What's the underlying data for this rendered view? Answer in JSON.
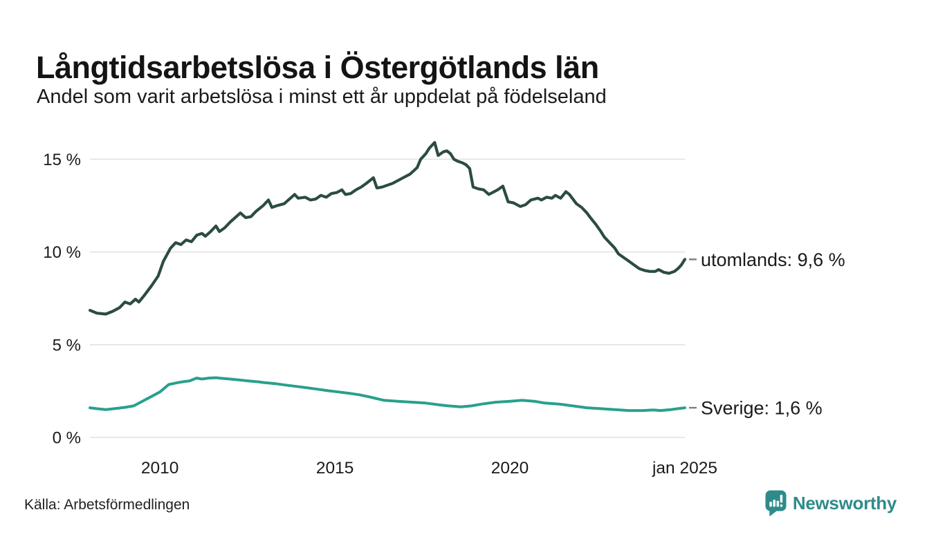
{
  "header": {
    "title": "Långtidsarbetslösa i Östergötlands län",
    "subtitle": "Andel som varit arbetslösa i minst ett år uppdelat på födelseland"
  },
  "chart_data": {
    "type": "line",
    "title": "Långtidsarbetslösa i Östergötlands län",
    "subtitle": "Andel som varit arbetslösa i minst ett år uppdelat på födelseland",
    "xlabel": "",
    "ylabel": "",
    "x_range": [
      2008,
      2025
    ],
    "ylim": [
      0,
      16
    ],
    "grid": "horizontal",
    "gridline_color": "#e1e1e1",
    "axis_text_color": "#1a1a1a",
    "yticks": [
      {
        "label": "0 %",
        "value": 0
      },
      {
        "label": "5 %",
        "value": 5
      },
      {
        "label": "10 %",
        "value": 10
      },
      {
        "label": "15 %",
        "value": 15
      }
    ],
    "xticks": [
      {
        "label": "2010",
        "value": 2010
      },
      {
        "label": "2015",
        "value": 2015
      },
      {
        "label": "2020",
        "value": 2020
      },
      {
        "label": "jan 2025",
        "value": 2025
      }
    ],
    "legend_position": "end-of-line-labels",
    "series": [
      {
        "name": "utomlands",
        "color": "#2c4c41",
        "stroke_width": 4.2,
        "end_label": "utomlands: 9,6 %",
        "end_value": 9.6,
        "points": [
          [
            2008.0,
            6.85
          ],
          [
            2008.2,
            6.7
          ],
          [
            2008.45,
            6.65
          ],
          [
            2008.65,
            6.8
          ],
          [
            2008.85,
            7.0
          ],
          [
            2009.0,
            7.3
          ],
          [
            2009.15,
            7.2
          ],
          [
            2009.3,
            7.45
          ],
          [
            2009.4,
            7.3
          ],
          [
            2009.55,
            7.65
          ],
          [
            2009.75,
            8.15
          ],
          [
            2009.95,
            8.7
          ],
          [
            2010.1,
            9.5
          ],
          [
            2010.3,
            10.2
          ],
          [
            2010.45,
            10.5
          ],
          [
            2010.6,
            10.4
          ],
          [
            2010.75,
            10.65
          ],
          [
            2010.9,
            10.55
          ],
          [
            2011.05,
            10.9
          ],
          [
            2011.2,
            11.0
          ],
          [
            2011.3,
            10.85
          ],
          [
            2011.45,
            11.1
          ],
          [
            2011.6,
            11.4
          ],
          [
            2011.7,
            11.1
          ],
          [
            2011.85,
            11.3
          ],
          [
            2012.0,
            11.6
          ],
          [
            2012.15,
            11.85
          ],
          [
            2012.3,
            12.1
          ],
          [
            2012.45,
            11.85
          ],
          [
            2012.6,
            11.9
          ],
          [
            2012.75,
            12.2
          ],
          [
            2012.95,
            12.5
          ],
          [
            2013.1,
            12.8
          ],
          [
            2013.2,
            12.4
          ],
          [
            2013.35,
            12.5
          ],
          [
            2013.55,
            12.6
          ],
          [
            2013.7,
            12.85
          ],
          [
            2013.85,
            13.1
          ],
          [
            2013.95,
            12.9
          ],
          [
            2014.15,
            12.95
          ],
          [
            2014.3,
            12.8
          ],
          [
            2014.45,
            12.85
          ],
          [
            2014.6,
            13.05
          ],
          [
            2014.75,
            12.95
          ],
          [
            2014.9,
            13.15
          ],
          [
            2015.05,
            13.2
          ],
          [
            2015.2,
            13.35
          ],
          [
            2015.3,
            13.1
          ],
          [
            2015.45,
            13.15
          ],
          [
            2015.6,
            13.35
          ],
          [
            2015.75,
            13.5
          ],
          [
            2015.9,
            13.7
          ],
          [
            2016.1,
            14.0
          ],
          [
            2016.2,
            13.45
          ],
          [
            2016.35,
            13.5
          ],
          [
            2016.65,
            13.7
          ],
          [
            2016.95,
            14.0
          ],
          [
            2017.15,
            14.2
          ],
          [
            2017.35,
            14.55
          ],
          [
            2017.45,
            15.0
          ],
          [
            2017.6,
            15.3
          ],
          [
            2017.7,
            15.6
          ],
          [
            2017.85,
            15.9
          ],
          [
            2017.95,
            15.2
          ],
          [
            2018.1,
            15.4
          ],
          [
            2018.2,
            15.45
          ],
          [
            2018.3,
            15.3
          ],
          [
            2018.4,
            15.0
          ],
          [
            2018.5,
            14.9
          ],
          [
            2018.65,
            14.8
          ],
          [
            2018.75,
            14.7
          ],
          [
            2018.85,
            14.5
          ],
          [
            2018.95,
            13.5
          ],
          [
            2019.1,
            13.4
          ],
          [
            2019.25,
            13.35
          ],
          [
            2019.4,
            13.1
          ],
          [
            2019.5,
            13.2
          ],
          [
            2019.65,
            13.35
          ],
          [
            2019.8,
            13.55
          ],
          [
            2019.95,
            12.7
          ],
          [
            2020.1,
            12.65
          ],
          [
            2020.3,
            12.45
          ],
          [
            2020.45,
            12.55
          ],
          [
            2020.6,
            12.8
          ],
          [
            2020.8,
            12.9
          ],
          [
            2020.9,
            12.8
          ],
          [
            2021.05,
            12.95
          ],
          [
            2021.2,
            12.9
          ],
          [
            2021.3,
            13.05
          ],
          [
            2021.45,
            12.9
          ],
          [
            2021.6,
            13.25
          ],
          [
            2021.7,
            13.1
          ],
          [
            2021.9,
            12.6
          ],
          [
            2022.05,
            12.4
          ],
          [
            2022.2,
            12.1
          ],
          [
            2022.3,
            11.85
          ],
          [
            2022.45,
            11.5
          ],
          [
            2022.6,
            11.1
          ],
          [
            2022.7,
            10.8
          ],
          [
            2022.85,
            10.5
          ],
          [
            2023.0,
            10.2
          ],
          [
            2023.1,
            9.9
          ],
          [
            2023.25,
            9.7
          ],
          [
            2023.4,
            9.5
          ],
          [
            2023.55,
            9.3
          ],
          [
            2023.7,
            9.1
          ],
          [
            2023.85,
            9.0
          ],
          [
            2024.0,
            8.95
          ],
          [
            2024.15,
            8.95
          ],
          [
            2024.25,
            9.05
          ],
          [
            2024.4,
            8.9
          ],
          [
            2024.55,
            8.85
          ],
          [
            2024.7,
            8.95
          ],
          [
            2024.8,
            9.1
          ],
          [
            2024.9,
            9.3
          ],
          [
            2025.0,
            9.6
          ]
        ]
      },
      {
        "name": "Sverige",
        "color": "#28a08c",
        "stroke_width": 4,
        "end_label": "Sverige: 1,6 %",
        "end_value": 1.6,
        "points": [
          [
            2008.0,
            1.6
          ],
          [
            2008.2,
            1.55
          ],
          [
            2008.45,
            1.5
          ],
          [
            2008.7,
            1.55
          ],
          [
            2009.0,
            1.62
          ],
          [
            2009.25,
            1.7
          ],
          [
            2009.45,
            1.9
          ],
          [
            2009.7,
            2.15
          ],
          [
            2010.0,
            2.45
          ],
          [
            2010.25,
            2.85
          ],
          [
            2010.5,
            2.95
          ],
          [
            2010.65,
            3.0
          ],
          [
            2010.85,
            3.05
          ],
          [
            2011.05,
            3.2
          ],
          [
            2011.2,
            3.15
          ],
          [
            2011.4,
            3.2
          ],
          [
            2011.6,
            3.22
          ],
          [
            2011.8,
            3.18
          ],
          [
            2012.0,
            3.15
          ],
          [
            2012.25,
            3.1
          ],
          [
            2012.5,
            3.05
          ],
          [
            2012.8,
            3.0
          ],
          [
            2013.0,
            2.95
          ],
          [
            2013.3,
            2.9
          ],
          [
            2013.6,
            2.82
          ],
          [
            2013.9,
            2.75
          ],
          [
            2014.2,
            2.68
          ],
          [
            2014.5,
            2.6
          ],
          [
            2014.8,
            2.52
          ],
          [
            2015.1,
            2.45
          ],
          [
            2015.4,
            2.38
          ],
          [
            2015.7,
            2.3
          ],
          [
            2016.0,
            2.18
          ],
          [
            2016.4,
            2.0
          ],
          [
            2016.8,
            1.95
          ],
          [
            2017.2,
            1.9
          ],
          [
            2017.6,
            1.85
          ],
          [
            2018.0,
            1.75
          ],
          [
            2018.25,
            1.7
          ],
          [
            2018.6,
            1.65
          ],
          [
            2018.9,
            1.7
          ],
          [
            2019.2,
            1.8
          ],
          [
            2019.6,
            1.9
          ],
          [
            2020.0,
            1.95
          ],
          [
            2020.35,
            2.0
          ],
          [
            2020.7,
            1.95
          ],
          [
            2021.0,
            1.85
          ],
          [
            2021.4,
            1.8
          ],
          [
            2021.8,
            1.7
          ],
          [
            2022.2,
            1.6
          ],
          [
            2022.6,
            1.55
          ],
          [
            2023.0,
            1.5
          ],
          [
            2023.4,
            1.45
          ],
          [
            2023.8,
            1.45
          ],
          [
            2024.1,
            1.48
          ],
          [
            2024.3,
            1.45
          ],
          [
            2024.6,
            1.5
          ],
          [
            2024.8,
            1.55
          ],
          [
            2025.0,
            1.6
          ]
        ]
      }
    ],
    "end_label_dash_color": "#7d7d7d"
  },
  "footer": {
    "source": "Källa: Arbetsförmedlingen",
    "brand": "Newsworthy",
    "brand_color": "#2e8b8b"
  }
}
